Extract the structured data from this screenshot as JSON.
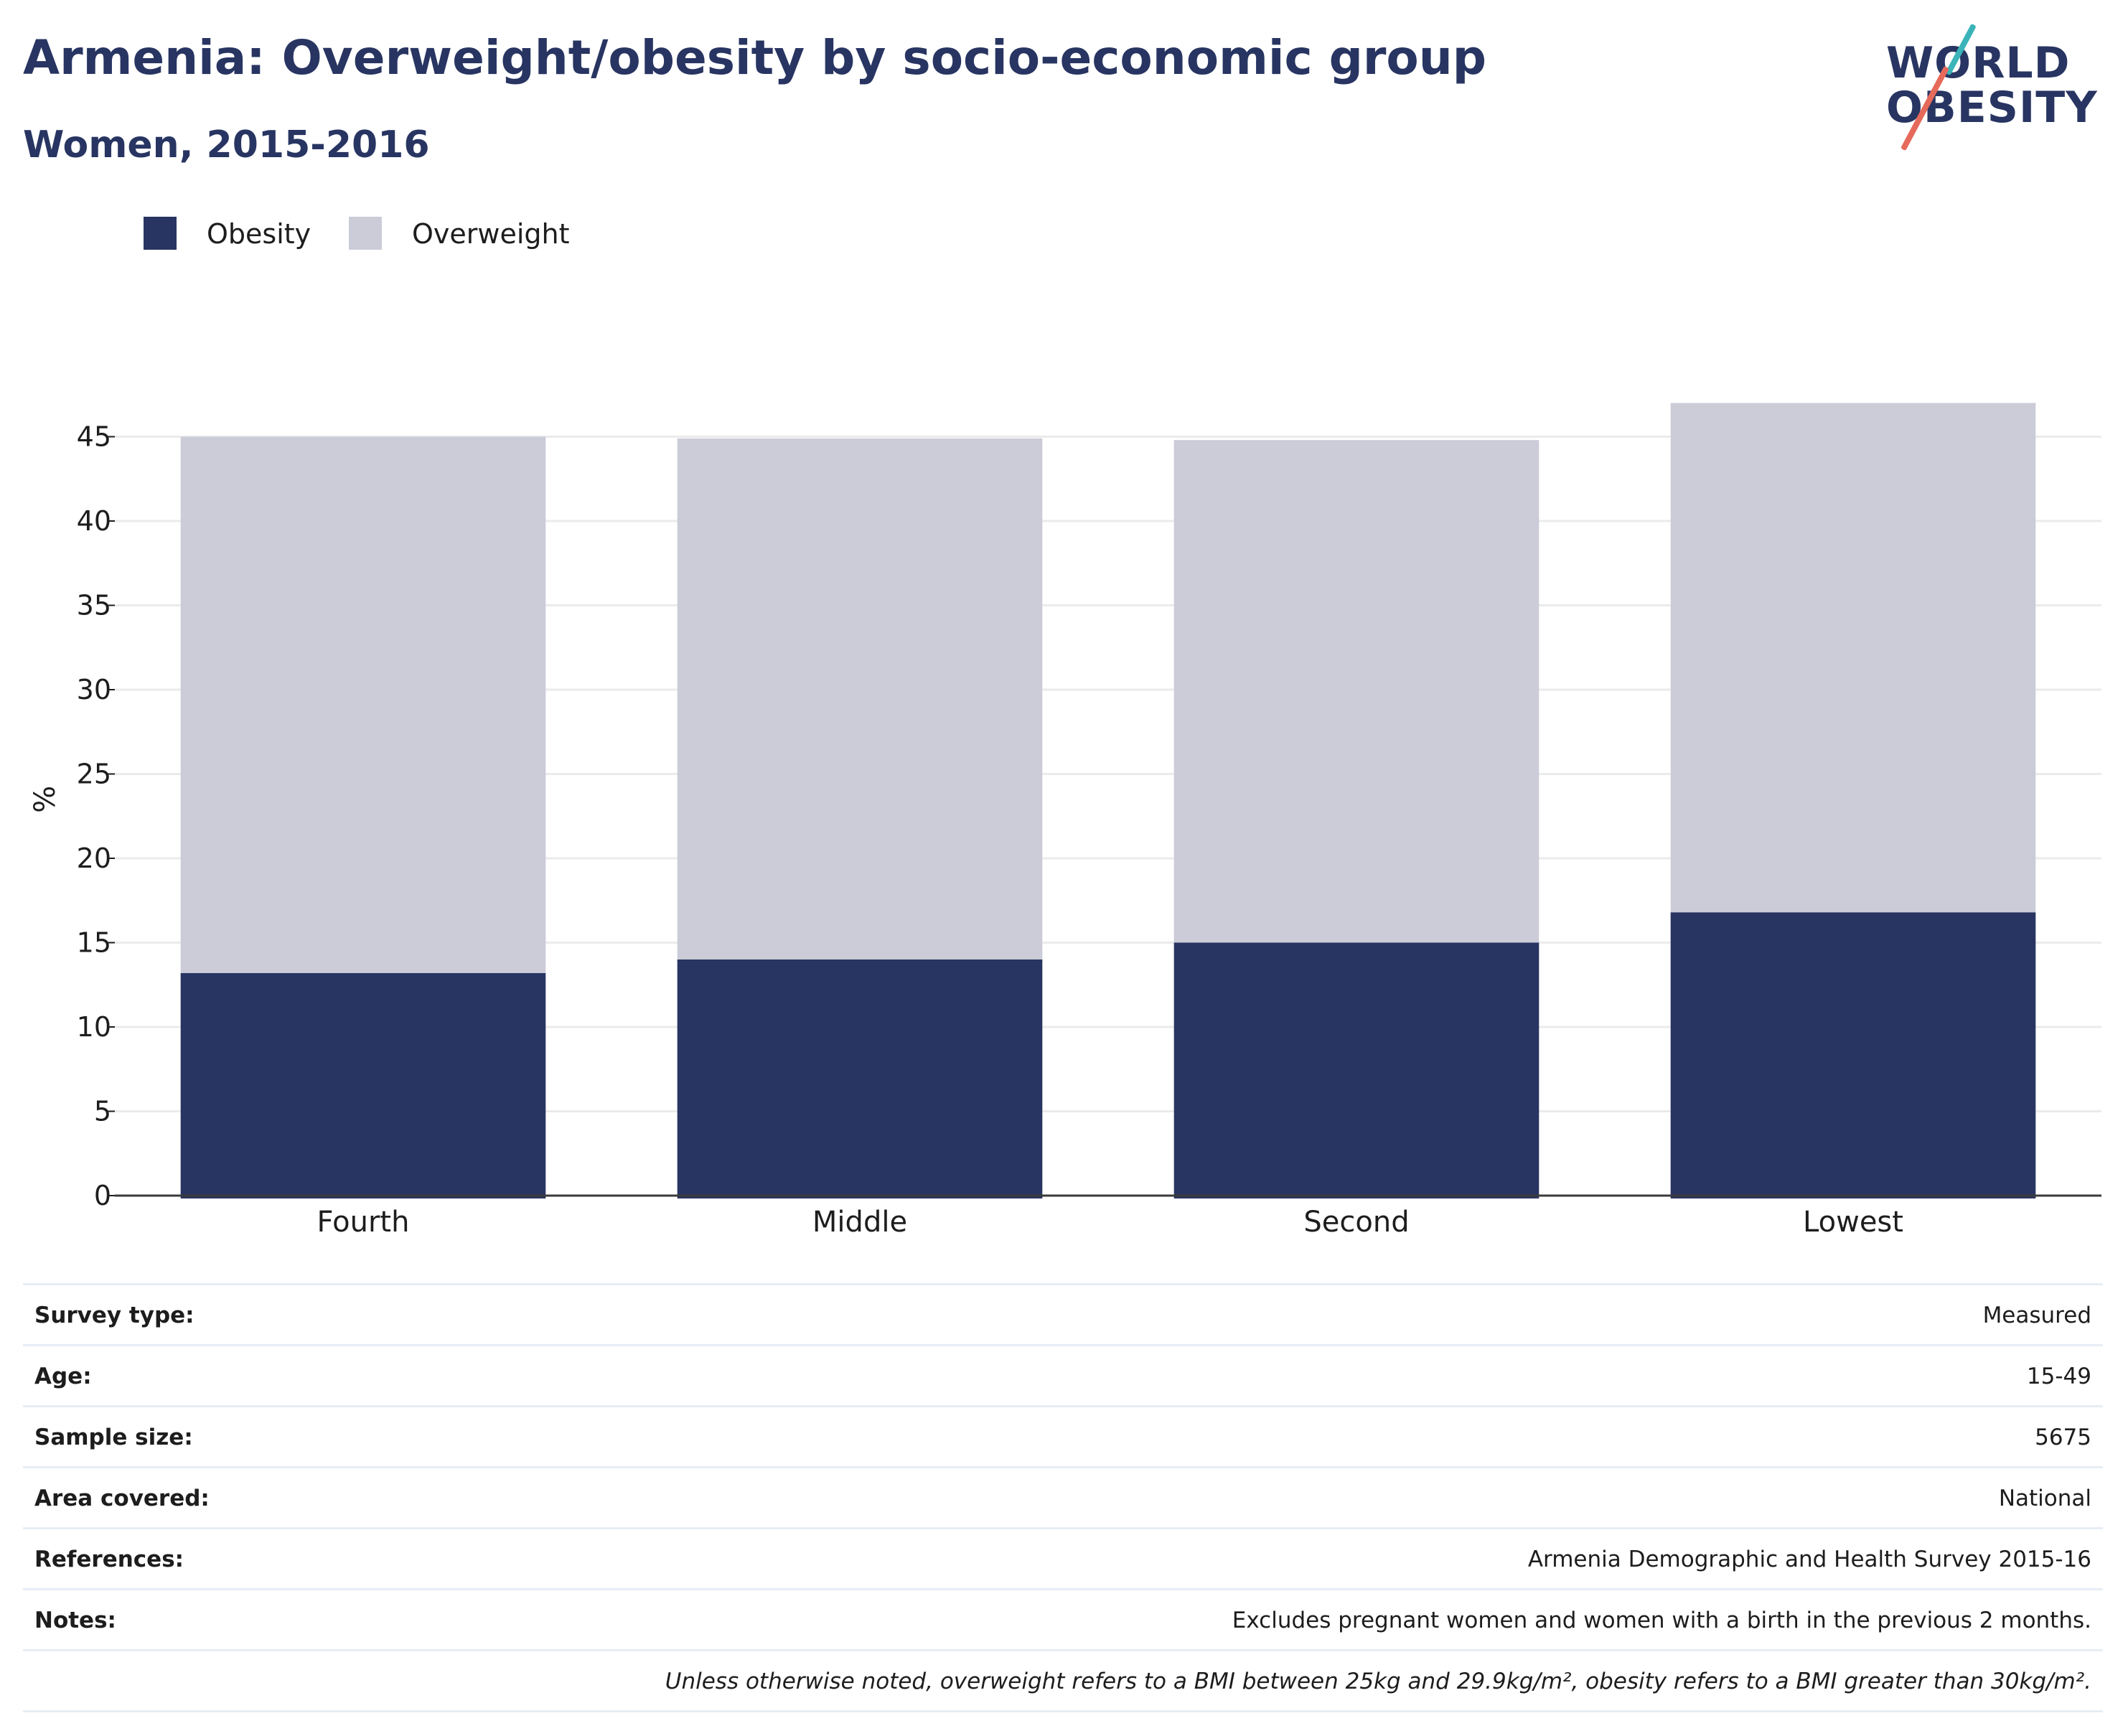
{
  "header": {
    "title": "Armenia: Overweight/obesity by socio-economic group",
    "subtitle": "Women, 2015-2016"
  },
  "logo": {
    "line1": "WORLD",
    "line2": "OBESITY"
  },
  "chart_data": {
    "type": "bar",
    "stacked": true,
    "categories": [
      "Fourth",
      "Middle",
      "Second",
      "Lowest"
    ],
    "series": [
      {
        "name": "Obesity",
        "values": [
          13.2,
          14.0,
          15.0,
          16.8
        ],
        "color": "#283562"
      },
      {
        "name": "Overweight",
        "values": [
          31.8,
          30.9,
          29.8,
          30.2
        ],
        "color": "#cbccd8"
      }
    ],
    "ylabel": "%",
    "ylim": [
      0,
      47
    ],
    "yticks": [
      0,
      5,
      10,
      15,
      20,
      25,
      30,
      35,
      40,
      45
    ],
    "grid": true,
    "legend_position": "top-left"
  },
  "meta": {
    "rows": [
      {
        "key": "Survey type:",
        "value": "Measured"
      },
      {
        "key": "Age:",
        "value": "15-49"
      },
      {
        "key": "Sample size:",
        "value": "5675"
      },
      {
        "key": "Area covered:",
        "value": "National"
      },
      {
        "key": "References:",
        "value": "Armenia Demographic and Health Survey 2015-16"
      },
      {
        "key": "Notes:",
        "value": "Excludes pregnant women and women with a birth in the previous 2 months."
      }
    ],
    "footnote": "Unless otherwise noted, overweight refers to a BMI between 25kg and 29.9kg/m², obesity refers to a BMI greater than 30kg/m²."
  }
}
